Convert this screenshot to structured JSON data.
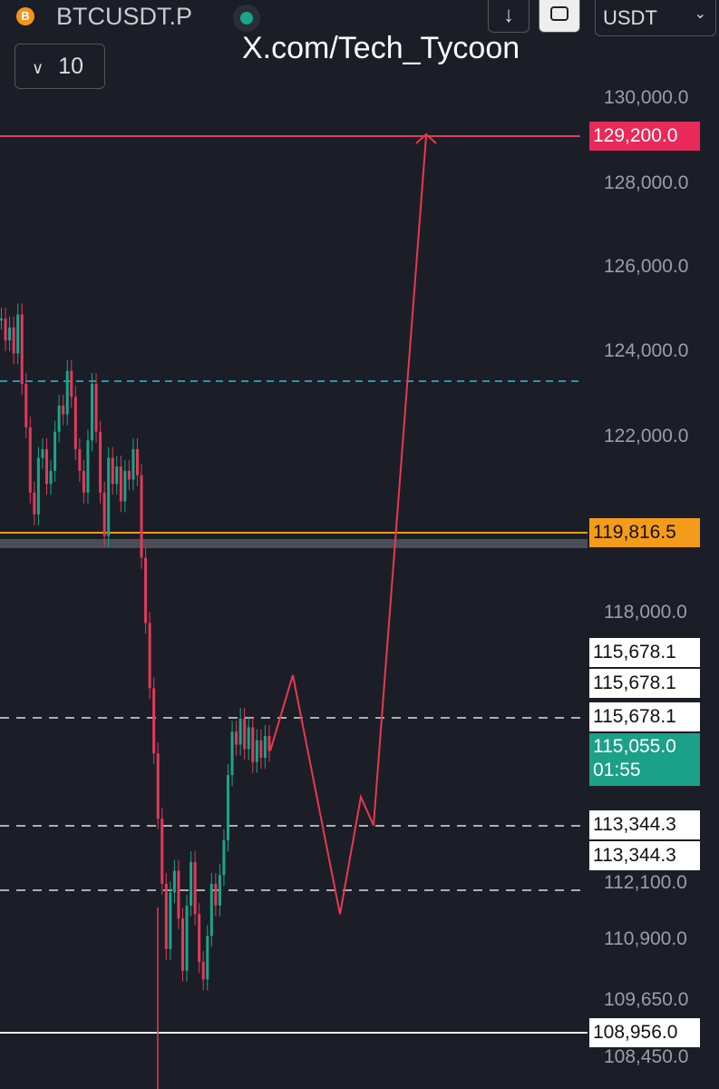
{
  "header": {
    "symbol": "BTCUSDT.P",
    "icon": "B",
    "download": "↓",
    "currency": "USDT",
    "interval": "10",
    "watermark": "X.com/Tech_Tycoon"
  },
  "price_axis": {
    "labels": [
      "130,000.0",
      "128,000.0",
      "126,000.0",
      "124,000.0",
      "122,000.0",
      "118,000.0",
      "112,100.0",
      "110,900.0",
      "109,650.0",
      "108,450.0"
    ]
  },
  "price_tags": {
    "target": "129,200.0",
    "level": "119,816.5",
    "resistance": [
      "115,678.1",
      "115,678.1",
      "115,678.1"
    ],
    "last_price": "115,055.0",
    "countdown": "01:55",
    "support": [
      "113,344.3",
      "113,344.3"
    ],
    "low": "108,956.0"
  },
  "candles": {
    "closes": [
      125000,
      124500,
      124800,
      124200,
      125100,
      123500,
      122500,
      121000,
      120500,
      121800,
      122000,
      121200,
      121500,
      122400,
      123000,
      122800,
      123800,
      123200,
      122000,
      121500,
      121000,
      122200,
      123500,
      122400,
      121000,
      120000,
      121800,
      121200,
      121600,
      120800,
      121500,
      121300,
      122000,
      121400,
      119500,
      118000,
      116500,
      115000,
      113500,
      112000,
      110500,
      111800,
      112300,
      111200,
      110000,
      111500,
      112500,
      111300,
      110200,
      109800,
      110800,
      112000,
      111500,
      112200,
      113000,
      114500,
      115500,
      115200,
      115800,
      115100,
      115600,
      114800,
      115300,
      114900,
      115400,
      115055
    ]
  },
  "projection": {
    "prices": [
      115055,
      116800,
      111300,
      114000,
      113344,
      129200
    ]
  }
}
